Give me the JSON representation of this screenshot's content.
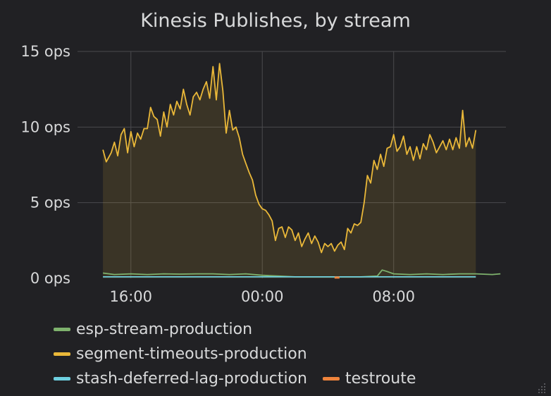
{
  "panel": {
    "title": "Kinesis Publishes, by stream"
  },
  "chart_data": {
    "type": "area",
    "title": "Kinesis Publishes, by stream",
    "xlabel": "",
    "ylabel": "",
    "x_range": [
      "12:45",
      "14:50"
    ],
    "x_ticks": [
      {
        "label": "16:00",
        "t": 16
      },
      {
        "label": "00:00",
        "t": 24
      },
      {
        "label": "08:00",
        "t": 32
      }
    ],
    "ylim": [
      0,
      15
    ],
    "y_ticks": [
      {
        "label": "15 ops",
        "v": 15
      },
      {
        "label": "10 ops",
        "v": 10
      },
      {
        "label": "5 ops",
        "v": 5
      },
      {
        "label": "0 ops",
        "v": 0
      }
    ],
    "grid": true,
    "legend_position": "bottom",
    "series": [
      {
        "name": "esp-stream-production",
        "color": "#7eb26d",
        "fill": false,
        "points": [
          [
            14.3,
            0.35
          ],
          [
            15.0,
            0.25
          ],
          [
            16.0,
            0.3
          ],
          [
            17.0,
            0.25
          ],
          [
            18.0,
            0.3
          ],
          [
            19.0,
            0.28
          ],
          [
            20.0,
            0.3
          ],
          [
            21.0,
            0.3
          ],
          [
            22.0,
            0.25
          ],
          [
            23.0,
            0.3
          ],
          [
            24.0,
            0.2
          ],
          [
            25.0,
            0.15
          ],
          [
            26.0,
            0.1
          ],
          [
            27.0,
            0.1
          ],
          [
            28.0,
            0.1
          ],
          [
            29.0,
            0.1
          ],
          [
            30.0,
            0.1
          ],
          [
            31.0,
            0.15
          ],
          [
            31.3,
            0.55
          ],
          [
            31.6,
            0.45
          ],
          [
            32.0,
            0.3
          ],
          [
            33.0,
            0.25
          ],
          [
            34.0,
            0.3
          ],
          [
            35.0,
            0.25
          ],
          [
            36.0,
            0.3
          ],
          [
            37.0,
            0.3
          ],
          [
            38.0,
            0.25
          ],
          [
            38.5,
            0.3
          ]
        ]
      },
      {
        "name": "segment-timeouts-production",
        "color": "#eab839",
        "fill": true,
        "points": [
          [
            14.3,
            8.5
          ],
          [
            14.5,
            7.7
          ],
          [
            14.8,
            8.3
          ],
          [
            15.0,
            9.0
          ],
          [
            15.2,
            8.1
          ],
          [
            15.4,
            9.5
          ],
          [
            15.6,
            9.9
          ],
          [
            15.8,
            8.3
          ],
          [
            16.0,
            9.7
          ],
          [
            16.2,
            8.7
          ],
          [
            16.4,
            9.6
          ],
          [
            16.6,
            9.2
          ],
          [
            16.8,
            9.9
          ],
          [
            17.0,
            9.9
          ],
          [
            17.2,
            11.3
          ],
          [
            17.4,
            10.7
          ],
          [
            17.6,
            10.5
          ],
          [
            17.8,
            9.4
          ],
          [
            18.0,
            11.0
          ],
          [
            18.2,
            10.0
          ],
          [
            18.4,
            11.5
          ],
          [
            18.6,
            10.8
          ],
          [
            18.8,
            11.7
          ],
          [
            19.0,
            11.2
          ],
          [
            19.2,
            12.5
          ],
          [
            19.4,
            11.5
          ],
          [
            19.6,
            10.8
          ],
          [
            19.8,
            12.0
          ],
          [
            20.0,
            12.3
          ],
          [
            20.2,
            11.8
          ],
          [
            20.4,
            12.5
          ],
          [
            20.6,
            13.0
          ],
          [
            20.8,
            11.9
          ],
          [
            21.0,
            14.0
          ],
          [
            21.2,
            11.8
          ],
          [
            21.4,
            14.2
          ],
          [
            21.6,
            12.4
          ],
          [
            21.8,
            9.6
          ],
          [
            22.0,
            11.1
          ],
          [
            22.2,
            9.8
          ],
          [
            22.4,
            10.0
          ],
          [
            22.6,
            9.3
          ],
          [
            22.8,
            8.2
          ],
          [
            23.0,
            7.6
          ],
          [
            23.2,
            7.0
          ],
          [
            23.4,
            6.5
          ],
          [
            23.6,
            5.5
          ],
          [
            23.8,
            4.9
          ],
          [
            24.0,
            4.6
          ],
          [
            24.2,
            4.5
          ],
          [
            24.4,
            4.2
          ],
          [
            24.6,
            3.8
          ],
          [
            24.8,
            2.5
          ],
          [
            25.0,
            3.3
          ],
          [
            25.2,
            3.4
          ],
          [
            25.4,
            2.7
          ],
          [
            25.6,
            3.4
          ],
          [
            25.8,
            3.2
          ],
          [
            26.0,
            2.5
          ],
          [
            26.2,
            3.0
          ],
          [
            26.4,
            2.1
          ],
          [
            26.6,
            2.6
          ],
          [
            26.8,
            3.0
          ],
          [
            27.0,
            2.3
          ],
          [
            27.2,
            2.8
          ],
          [
            27.4,
            2.4
          ],
          [
            27.6,
            1.7
          ],
          [
            27.8,
            2.3
          ],
          [
            28.0,
            2.1
          ],
          [
            28.2,
            2.3
          ],
          [
            28.4,
            1.8
          ],
          [
            28.6,
            2.2
          ],
          [
            28.8,
            2.4
          ],
          [
            29.0,
            1.9
          ],
          [
            29.2,
            3.3
          ],
          [
            29.4,
            3.0
          ],
          [
            29.6,
            3.6
          ],
          [
            29.8,
            3.5
          ],
          [
            30.0,
            3.7
          ],
          [
            30.2,
            5.0
          ],
          [
            30.4,
            6.8
          ],
          [
            30.6,
            6.3
          ],
          [
            30.8,
            7.8
          ],
          [
            31.0,
            7.2
          ],
          [
            31.2,
            8.2
          ],
          [
            31.4,
            7.4
          ],
          [
            31.6,
            8.6
          ],
          [
            31.8,
            8.7
          ],
          [
            32.0,
            9.5
          ],
          [
            32.2,
            8.4
          ],
          [
            32.4,
            8.7
          ],
          [
            32.6,
            9.4
          ],
          [
            32.8,
            8.2
          ],
          [
            33.0,
            8.7
          ],
          [
            33.2,
            7.8
          ],
          [
            33.4,
            8.7
          ],
          [
            33.6,
            7.9
          ],
          [
            33.8,
            8.9
          ],
          [
            34.0,
            8.5
          ],
          [
            34.2,
            9.5
          ],
          [
            34.4,
            9.0
          ],
          [
            34.6,
            8.3
          ],
          [
            34.8,
            8.7
          ],
          [
            35.0,
            9.1
          ],
          [
            35.2,
            8.5
          ],
          [
            35.4,
            9.2
          ],
          [
            35.6,
            8.5
          ],
          [
            35.8,
            9.3
          ],
          [
            36.0,
            8.6
          ],
          [
            36.2,
            11.1
          ],
          [
            36.4,
            8.7
          ],
          [
            36.6,
            9.3
          ],
          [
            36.8,
            8.6
          ],
          [
            37.0,
            9.8
          ]
        ]
      },
      {
        "name": "stash-deferred-lag-production",
        "color": "#6ed0e0",
        "fill": false,
        "points": [
          [
            14.3,
            0.1
          ],
          [
            37.0,
            0.1
          ]
        ]
      },
      {
        "name": "testroute",
        "color": "#ef843c",
        "fill": false,
        "points": [
          [
            28.4,
            0.05
          ],
          [
            28.7,
            0.05
          ]
        ]
      }
    ]
  },
  "legend": {
    "rows": [
      [
        0
      ],
      [
        1
      ],
      [
        2,
        3
      ]
    ]
  }
}
